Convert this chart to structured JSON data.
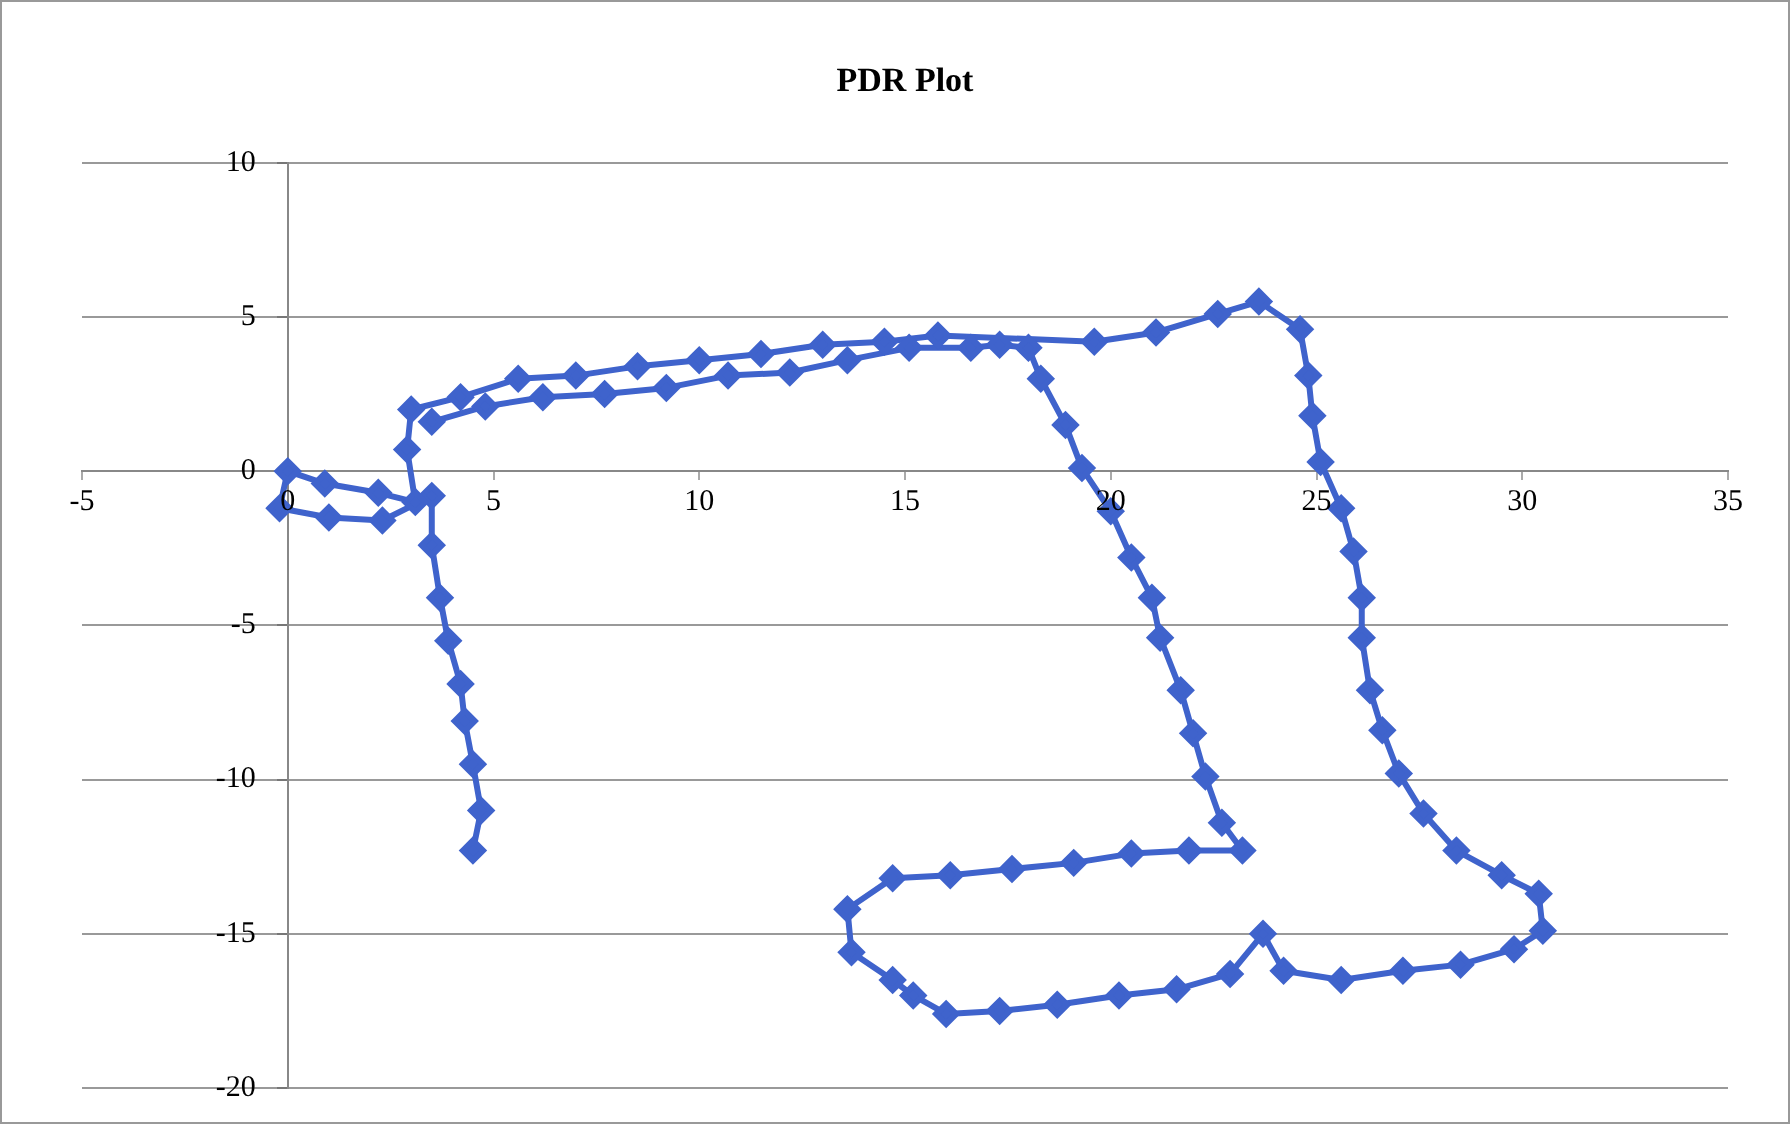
{
  "chart_data": {
    "type": "line",
    "title": "PDR Plot",
    "xlim": [
      -5,
      35
    ],
    "xticks": [
      -5,
      0,
      5,
      10,
      15,
      20,
      25,
      30,
      35
    ],
    "ylim": [
      -20,
      10
    ],
    "yticks": [
      -20,
      -15,
      -10,
      -5,
      0,
      5,
      10
    ],
    "grid": "y",
    "legend": false,
    "marker": "diamond",
    "line_style": "solid",
    "series": [
      {
        "color": "#3f63cc",
        "x": [
          4.5,
          4.7,
          4.5,
          4.3,
          4.2,
          3.9,
          3.7,
          3.5,
          3.5,
          2.3,
          1.0,
          -0.2,
          0,
          0.9,
          2.2,
          3.1,
          2.9,
          3.0,
          4.2,
          5.6,
          7.0,
          8.5,
          10.0,
          11.5,
          13.0,
          14.5,
          15.8,
          19.6,
          21.1,
          22.6,
          23.6,
          24.6,
          24.8,
          24.9,
          25.1,
          25.6,
          25.9,
          26.1,
          26.1,
          26.3,
          26.6,
          27.0,
          27.6,
          28.4,
          29.5,
          30.4,
          30.5,
          29.8,
          28.5,
          27.1,
          25.6,
          24.2,
          23.7,
          22.9,
          21.6,
          20.2,
          18.7,
          17.3,
          16.0,
          15.2,
          14.7,
          13.7,
          13.6,
          14.7,
          16.1,
          17.6,
          19.1,
          20.5,
          21.9,
          23.2,
          22.7,
          22.3,
          22.0,
          21.7,
          21.2,
          21.0,
          20.5,
          20.0,
          19.3,
          18.9,
          18.3,
          18.0,
          17.3,
          16.6,
          15.1,
          13.6,
          12.2,
          10.7,
          9.2,
          7.7,
          6.2,
          4.8,
          3.5
        ],
        "values": [
          -12.3,
          -11.0,
          -9.5,
          -8.1,
          -6.9,
          -5.5,
          -4.1,
          -2.4,
          -0.8,
          -1.6,
          -1.5,
          -1.2,
          0,
          -0.4,
          -0.7,
          -1.0,
          0.7,
          2.0,
          2.4,
          3.0,
          3.1,
          3.4,
          3.6,
          3.8,
          4.1,
          4.2,
          4.4,
          4.2,
          4.5,
          5.1,
          5.5,
          4.6,
          3.1,
          1.8,
          0.3,
          -1.2,
          -2.6,
          -4.1,
          -5.4,
          -7.1,
          -8.4,
          -9.8,
          -11.1,
          -12.3,
          -13.1,
          -13.7,
          -14.9,
          -15.5,
          -16.0,
          -16.2,
          -16.5,
          -16.2,
          -15.0,
          -16.3,
          -16.8,
          -17.0,
          -17.3,
          -17.5,
          -17.6,
          -17.0,
          -16.5,
          -15.6,
          -14.2,
          -13.2,
          -13.1,
          -12.9,
          -12.7,
          -12.4,
          -12.3,
          -12.3,
          -11.4,
          -9.9,
          -8.5,
          -7.1,
          -5.4,
          -4.1,
          -2.8,
          -1.3,
          0.1,
          1.5,
          3.0,
          4.0,
          4.1,
          4.0,
          4.0,
          3.6,
          3.2,
          3.1,
          2.7,
          2.5,
          2.4,
          2.1,
          1.6
        ]
      }
    ]
  }
}
